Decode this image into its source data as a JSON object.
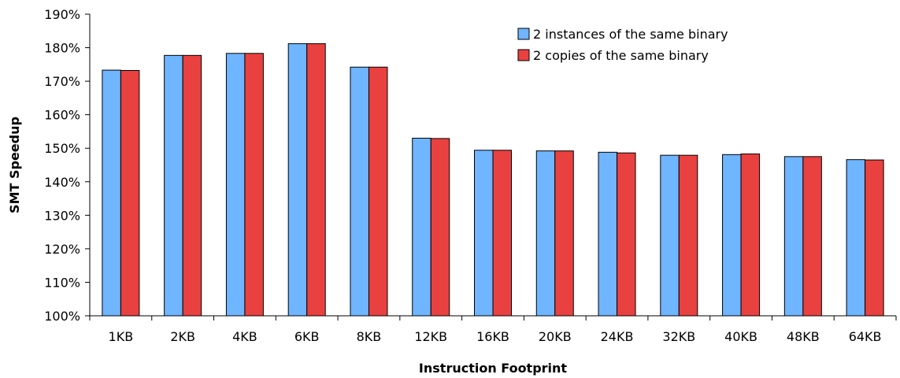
{
  "chart_data": {
    "type": "bar",
    "title": "",
    "xlabel": "Instruction Footprint",
    "ylabel": "SMT Speedup",
    "categories": [
      "1KB",
      "2KB",
      "4KB",
      "6KB",
      "8KB",
      "12KB",
      "16KB",
      "20KB",
      "24KB",
      "32KB",
      "40KB",
      "48KB",
      "64KB"
    ],
    "ylim": [
      100,
      190
    ],
    "yticks": [
      100,
      110,
      120,
      130,
      140,
      150,
      160,
      170,
      180,
      190
    ],
    "ytick_labels": [
      "100%",
      "110%",
      "120%",
      "130%",
      "140%",
      "150%",
      "160%",
      "170%",
      "180%",
      "190%"
    ],
    "grid": false,
    "legend_position": "top-right",
    "series": [
      {
        "name": "2 instances of the same binary",
        "color": "#6fb5ff",
        "values": [
          173.3,
          177.7,
          178.3,
          181.2,
          174.2,
          153.0,
          149.4,
          149.2,
          148.8,
          147.9,
          148.1,
          147.5,
          146.6
        ]
      },
      {
        "name": "2 copies of the same binary",
        "color": "#e8413f",
        "values": [
          173.2,
          177.7,
          178.3,
          181.2,
          174.2,
          152.9,
          149.4,
          149.2,
          148.6,
          147.9,
          148.3,
          147.5,
          146.5
        ]
      }
    ]
  }
}
